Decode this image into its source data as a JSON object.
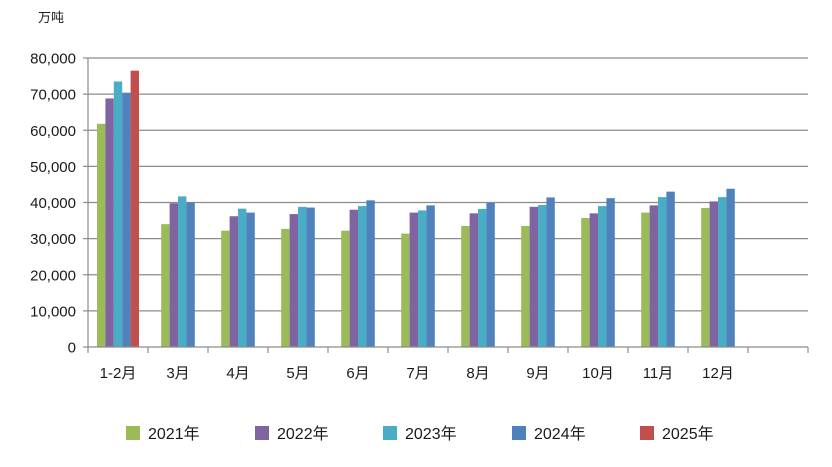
{
  "chart_data": {
    "type": "bar",
    "unit_label": "万吨",
    "categories": [
      "1-2月",
      "3月",
      "4月",
      "5月",
      "6月",
      "7月",
      "8月",
      "9月",
      "10月",
      "11月",
      "12月"
    ],
    "y_ticks": [
      "0",
      "10,000",
      "20,000",
      "30,000",
      "40,000",
      "50,000",
      "60,000",
      "70,000",
      "80,000"
    ],
    "ylim": [
      0,
      80000
    ],
    "grid": true,
    "legend_position": "bottom",
    "series": [
      {
        "name": "2021年",
        "color": "#9bbb59",
        "values": [
          61800,
          34000,
          32200,
          32700,
          32200,
          31400,
          33500,
          33500,
          35700,
          37200,
          38500
        ]
      },
      {
        "name": "2022年",
        "color": "#8064a2",
        "values": [
          68800,
          39800,
          36200,
          36800,
          38000,
          37200,
          37000,
          38800,
          37000,
          39200,
          40300
        ]
      },
      {
        "name": "2023年",
        "color": "#4bacc6",
        "values": [
          73500,
          41700,
          38300,
          38800,
          39000,
          37800,
          38200,
          39300,
          39000,
          41500,
          41500
        ]
      },
      {
        "name": "2024年",
        "color": "#4f81bd",
        "values": [
          70400,
          40000,
          37200,
          38600,
          40600,
          39200,
          39900,
          41400,
          41200,
          43000,
          43800
        ]
      },
      {
        "name": "2025年",
        "color": "#c0504d",
        "values": [
          76500,
          null,
          null,
          null,
          null,
          null,
          null,
          null,
          null,
          null,
          null
        ]
      }
    ]
  }
}
